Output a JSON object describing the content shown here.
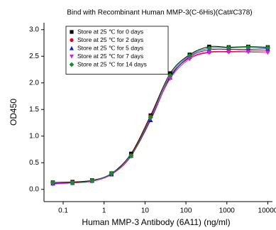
{
  "chart_data": {
    "type": "scatter",
    "title": "Bind with Recombinant Human MMP-3(C-6His)(Cat#C378)",
    "x_label": "Human MMP-3 Antibody (6A11) (ng/ml)",
    "y_label": "OD450",
    "x_scale": "log",
    "x": [
      0.056,
      0.169,
      0.508,
      1.52,
      4.57,
      13.7,
      41.2,
      123,
      370,
      1111,
      3333,
      10000
    ],
    "series": [
      {
        "name": "Store at 25 ℃ for 0 days",
        "color": "#000000",
        "marker": "square",
        "values": [
          0.13,
          0.14,
          0.17,
          0.3,
          0.67,
          1.39,
          2.18,
          2.53,
          2.68,
          2.67,
          2.68,
          2.67
        ]
      },
      {
        "name": "Store at 25 ℃ for 2 days",
        "color": "#e8001c",
        "marker": "circle",
        "values": [
          0.12,
          0.13,
          0.16,
          0.29,
          0.64,
          1.37,
          2.12,
          2.47,
          2.58,
          2.59,
          2.6,
          2.6
        ]
      },
      {
        "name": "Store at 25 ℃ for 5 days",
        "color": "#1010ee",
        "marker": "triangle-up",
        "values": [
          0.11,
          0.12,
          0.16,
          0.28,
          0.63,
          1.3,
          2.1,
          2.49,
          2.62,
          2.63,
          2.63,
          2.64
        ]
      },
      {
        "name": "Store at 25 ℃ for 7 days",
        "color": "#ee10ee",
        "marker": "triangle-down",
        "values": [
          0.1,
          0.12,
          0.15,
          0.28,
          0.62,
          1.33,
          2.08,
          2.45,
          2.57,
          2.58,
          2.58,
          2.57
        ]
      },
      {
        "name": "Store at 25 ℃ for 14 days",
        "color": "#1a8a2a",
        "marker": "diamond",
        "values": [
          0.13,
          0.12,
          0.16,
          0.3,
          0.63,
          1.35,
          2.14,
          2.51,
          2.65,
          2.66,
          2.67,
          2.66
        ]
      }
    ],
    "xlim": [
      0.034,
      13000
    ],
    "xticks": [
      0.1,
      1,
      10,
      100,
      1000,
      10000
    ],
    "ylim": [
      -0.23,
      3.13
    ],
    "yticks": [
      {
        "value": 0,
        "label": "0.0"
      },
      0.5,
      {
        "value": 1,
        "label": "1.0"
      },
      1.5,
      {
        "value": 2,
        "label": "2.0"
      },
      2.5,
      {
        "value": 3,
        "label": "3.0"
      }
    ],
    "legend": "upper left"
  }
}
